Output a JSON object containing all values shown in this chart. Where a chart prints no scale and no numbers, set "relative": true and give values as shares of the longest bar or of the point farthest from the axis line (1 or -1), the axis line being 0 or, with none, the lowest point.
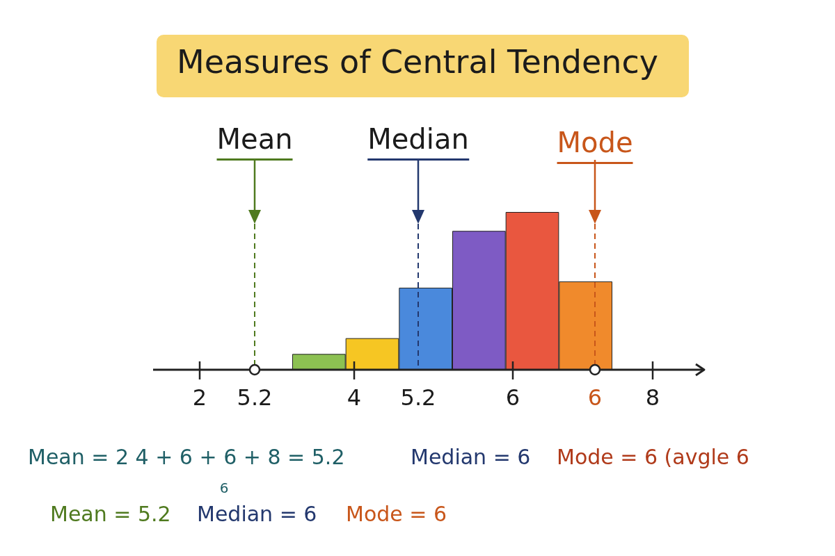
{
  "chart_data": {
    "type": "bar",
    "title": "Measures of Central Tendency",
    "categories": [
      null,
      null,
      null,
      null,
      null,
      null
    ],
    "values": [
      0.1,
      0.2,
      0.52,
      0.88,
      1,
      0.56
    ],
    "colors": [
      "#8cc152",
      "#f6c623",
      "#4a89dc",
      "#7e5bc4",
      "#e9573f",
      "#f08a2c"
    ],
    "relative": true,
    "annotations": [
      "Mean",
      "Median",
      "Mode",
      "2",
      "5.2",
      "4",
      "5.2",
      "6",
      "6",
      "8",
      "Mean = 2 4 + 6 + 6 + 8 = 5.2",
      "6",
      "Median = 6",
      "Mode = 6 (avgle 6",
      "Mean = 5.2",
      "Median = 6",
      "Mode = 6"
    ]
  }
}
